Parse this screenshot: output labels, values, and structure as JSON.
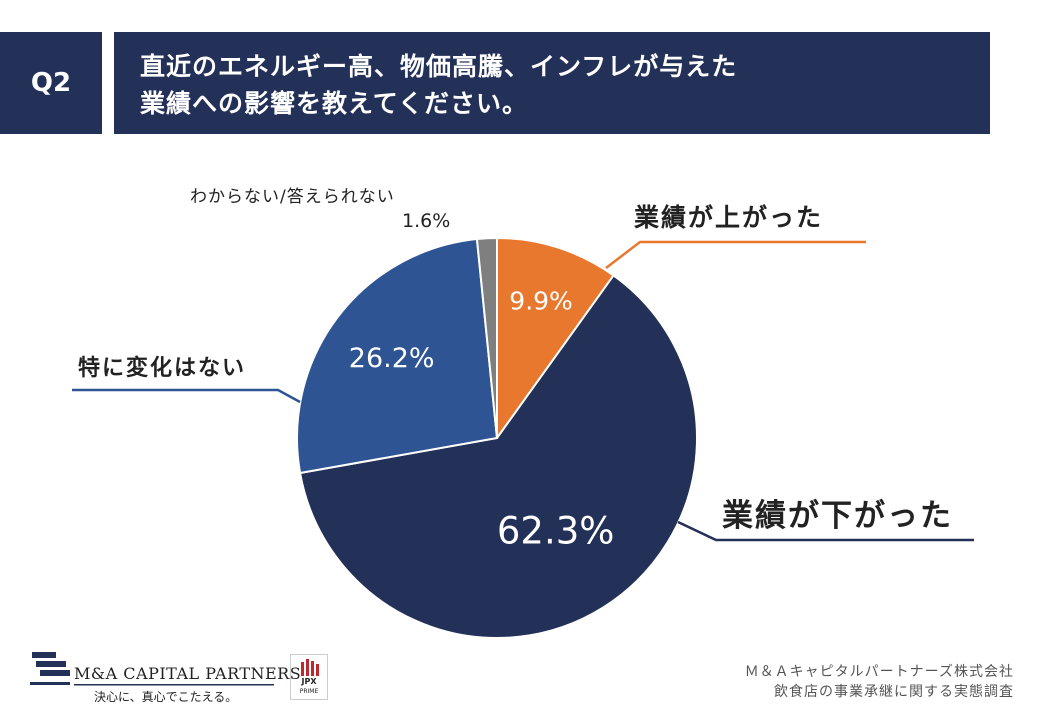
{
  "header": {
    "question_number": "Q2",
    "question_line1": "直近のエネルギー高、物価高騰、インフレが与えた",
    "question_line2": "業績への影響を教えてください。"
  },
  "chart_data": {
    "type": "pie",
    "start_angle_deg": 0,
    "direction": "clockwise",
    "slices": [
      {
        "label": "業績が上がった",
        "value": 9.9,
        "value_label": "9.9%",
        "color": "#E8782E"
      },
      {
        "label": "業績が下がった",
        "value": 62.3,
        "value_label": "62.3%",
        "color": "#233058"
      },
      {
        "label": "特に変化はない",
        "value": 26.2,
        "value_label": "26.2%",
        "color": "#2E5494"
      },
      {
        "label": "わからない/答えられない",
        "value": 1.6,
        "value_label": "1.6%",
        "color": "#7F7F7F"
      }
    ]
  },
  "footer": {
    "logo_name": "M&A CAPITAL PARTNERS",
    "logo_tagline": "決心に、真心でこたえる。",
    "jpx_text": "JPX",
    "jpx_sub": "PRIME",
    "source_line1": "Ｍ＆Ａキャピタルパートナーズ株式会社",
    "source_line2": "飲食店の事業承継に関する実態調査"
  }
}
